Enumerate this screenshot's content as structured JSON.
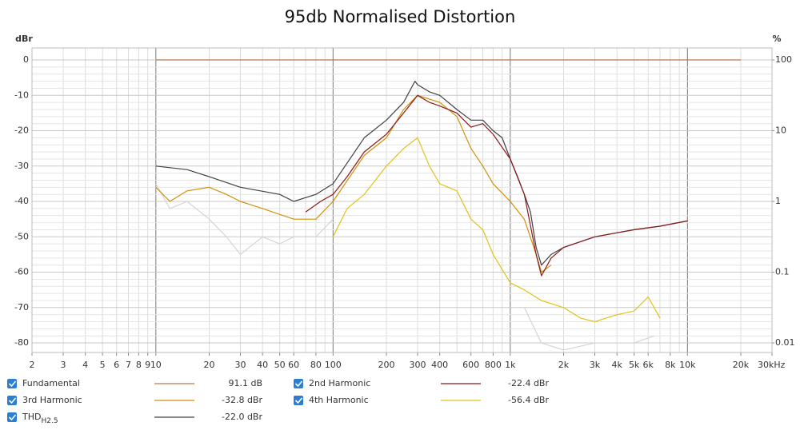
{
  "chart_data": {
    "type": "line",
    "title": "95db Normalised Distortion",
    "y_axis_label": "dBr",
    "y2_axis_label": "%",
    "x_log": true,
    "y2_log": true,
    "grid": true,
    "xlim": [
      2,
      30000
    ],
    "ylim": [
      -82.7,
      3.4
    ],
    "y2lim": [
      0.00733,
      147.9
    ],
    "xticks": [
      2,
      3,
      4,
      5,
      6,
      7,
      8,
      9,
      10,
      20,
      30,
      40,
      50,
      60,
      80,
      100,
      200,
      300,
      400,
      600,
      800,
      {
        "value": 1000,
        "label": "1k"
      },
      {
        "value": 2000,
        "label": "2k"
      },
      {
        "value": 3000,
        "label": "3k"
      },
      {
        "value": 4000,
        "label": "4k"
      },
      {
        "value": 5000,
        "label": "5k"
      },
      {
        "value": 6000,
        "label": "6k"
      },
      {
        "value": 8000,
        "label": "8k"
      },
      {
        "value": 10000,
        "label": "10k"
      },
      {
        "value": 20000,
        "label": "20k"
      },
      {
        "value": 30000,
        "label": "30kHz"
      }
    ],
    "yticks": [
      0,
      -10,
      -20,
      -30,
      -40,
      -50,
      -60,
      -70,
      -80
    ],
    "y2ticks": [
      100,
      10,
      1,
      0.1,
      0.01
    ],
    "series": [
      {
        "name": "Fundamental",
        "color": "#b8784e",
        "legend_value": "91.1 dB",
        "x": [
          10,
          20000
        ],
        "values": [
          0,
          0
        ]
      },
      {
        "name": "2nd Harmonic",
        "color": "#8b1a1a",
        "legend_value": "-22.4 dBr",
        "x": [
          70,
          85,
          100,
          120,
          150,
          200,
          250,
          300,
          350,
          400,
          500,
          600,
          700,
          800,
          1000,
          1200,
          1400,
          1500,
          1700,
          2000,
          3000,
          5000,
          7000,
          10000
        ],
        "values": [
          -43,
          -40,
          -38,
          -33,
          -26,
          -21,
          -15,
          -10,
          -12,
          -13,
          -15,
          -19,
          -18,
          -21,
          -28,
          -38,
          -55,
          -61,
          -56,
          -53,
          -50,
          -48,
          -47,
          -45.5
        ]
      },
      {
        "name": "3rd Harmonic",
        "color": "#d0900a",
        "legend_value": "-32.8 dBr",
        "x": [
          10,
          12,
          15,
          20,
          25,
          30,
          40,
          60,
          80,
          100,
          150,
          200,
          250,
          300,
          400,
          500,
          600,
          700,
          800,
          1000,
          1200,
          1400,
          1500,
          1700
        ],
        "values": [
          -36,
          -40,
          -37,
          -36,
          -38,
          -40,
          -42,
          -45,
          -45,
          -40,
          -27,
          -22,
          -14,
          -10,
          -12,
          -16,
          -25,
          -30,
          -35,
          -40,
          -45,
          -55,
          -60,
          -58
        ]
      },
      {
        "name": "4th Harmonic",
        "color": "#e2c21a",
        "legend_value": "-56.4 dBr",
        "x": [
          100,
          120,
          150,
          200,
          250,
          300,
          350,
          400,
          500,
          600,
          700,
          800,
          1000,
          1200,
          1500,
          2000,
          2500,
          3000,
          4000,
          5000,
          6000,
          7000
        ],
        "values": [
          -50,
          -42,
          -38,
          -30,
          -25,
          -22,
          -30,
          -35,
          -37,
          -45,
          -48,
          -55,
          -63,
          -65,
          -68,
          -70,
          -73,
          -74,
          -72,
          -71,
          -67,
          -73
        ]
      },
      {
        "name": "THD",
        "name_subscript": "H2.5",
        "color": "#404040",
        "legend_value": "-22.0 dBr",
        "x": [
          10,
          15,
          20,
          30,
          50,
          60,
          80,
          100,
          150,
          200,
          250,
          290,
          300,
          350,
          400,
          500,
          600,
          700,
          800,
          900,
          1000,
          1100,
          1200,
          1300,
          1400,
          1500,
          1700,
          2000,
          3000,
          5000,
          7000,
          10000
        ],
        "values": [
          -30,
          -31,
          -33,
          -36,
          -38,
          -40,
          -38,
          -35,
          -22,
          -17,
          -12,
          -6,
          -7,
          -9,
          -10,
          -14,
          -17,
          -17,
          -20,
          -22,
          -28,
          -33,
          -38,
          -43,
          -53,
          -58,
          -55,
          -53,
          -50,
          -48,
          -47,
          -45.5
        ]
      },
      {
        "color": "#d4d4d4",
        "x": [
          10,
          12,
          15,
          20,
          25,
          30,
          40,
          50,
          60,
          80,
          100,
          1100,
          1200,
          1500,
          2000,
          3000,
          5000,
          6500
        ],
        "values": [
          -35,
          -42,
          -40,
          -45,
          -50,
          -55,
          -50,
          -52,
          -50,
          -50,
          -45,
          null,
          -70,
          -80,
          -82,
          -80,
          -80,
          -78
        ]
      }
    ]
  }
}
